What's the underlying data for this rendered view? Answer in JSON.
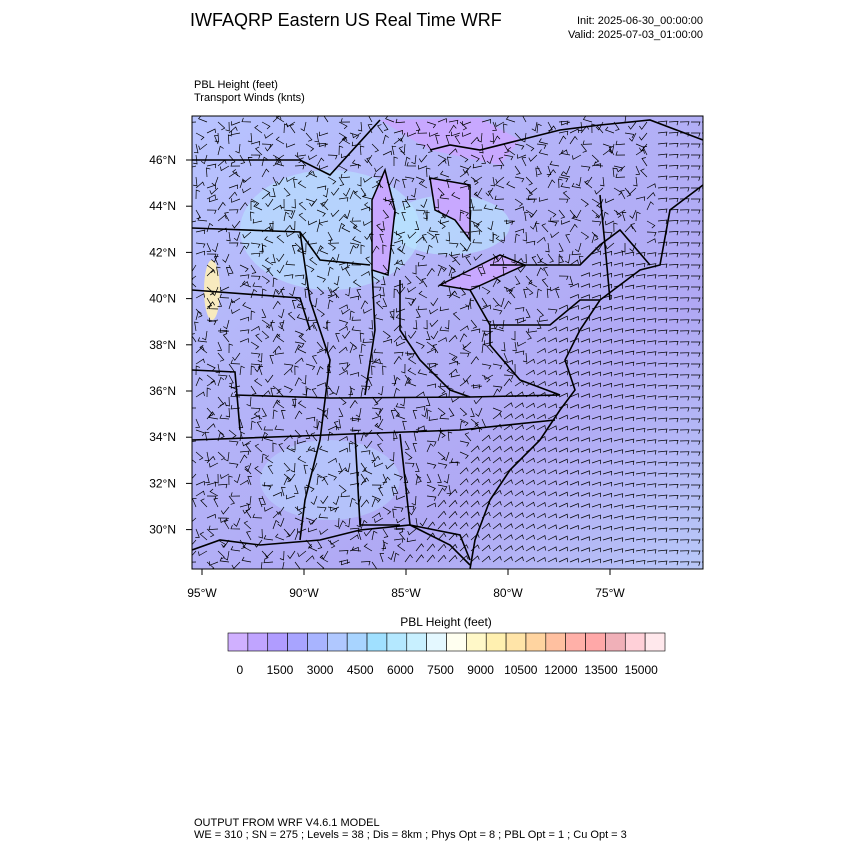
{
  "header": {
    "title": "IWFAQRP Eastern US Real Time WRF",
    "init": "Init: 2025-06-30_00:00:00",
    "valid": "Valid: 2025-07-03_01:00:00"
  },
  "map": {
    "field_labels": [
      "PBL Height   (feet)",
      "Transport Winds   (knts)"
    ],
    "lat_labels": [
      "46°N",
      "44°N",
      "42°N",
      "40°N",
      "38°N",
      "36°N",
      "34°N",
      "32°N",
      "30°N"
    ],
    "lon_labels": [
      "95°W",
      "90°W",
      "85°W",
      "80°W",
      "75°W"
    ]
  },
  "colorbar": {
    "title": "PBL Height  (feet)",
    "colors": [
      "#d0b0ff",
      "#c0a4ff",
      "#b09cff",
      "#a8a4ff",
      "#a8b4ff",
      "#b0c8ff",
      "#a8d4ff",
      "#a0e0ff",
      "#b4e8ff",
      "#c8f0ff",
      "#e4f8ff",
      "#fffff0",
      "#fff8c8",
      "#fff0b0",
      "#ffe4a8",
      "#ffd4a0",
      "#ffc0a0",
      "#ffb0a8",
      "#ffa8a8",
      "#f0b0b8",
      "#ffd0d8",
      "#ffe8ec"
    ],
    "labels": [
      "0",
      "1500",
      "3000",
      "4500",
      "6000",
      "7500",
      "9000",
      "10500",
      "12000",
      "13500",
      "15000"
    ]
  },
  "footer": {
    "model": "OUTPUT FROM WRF V4.6.1 MODEL",
    "details": "WE = 310 ; SN = 275 ; Levels = 38 ; Dis = 8km ; Phys Opt = 8 ; PBL Opt = 1 ; Cu Opt = 3"
  }
}
